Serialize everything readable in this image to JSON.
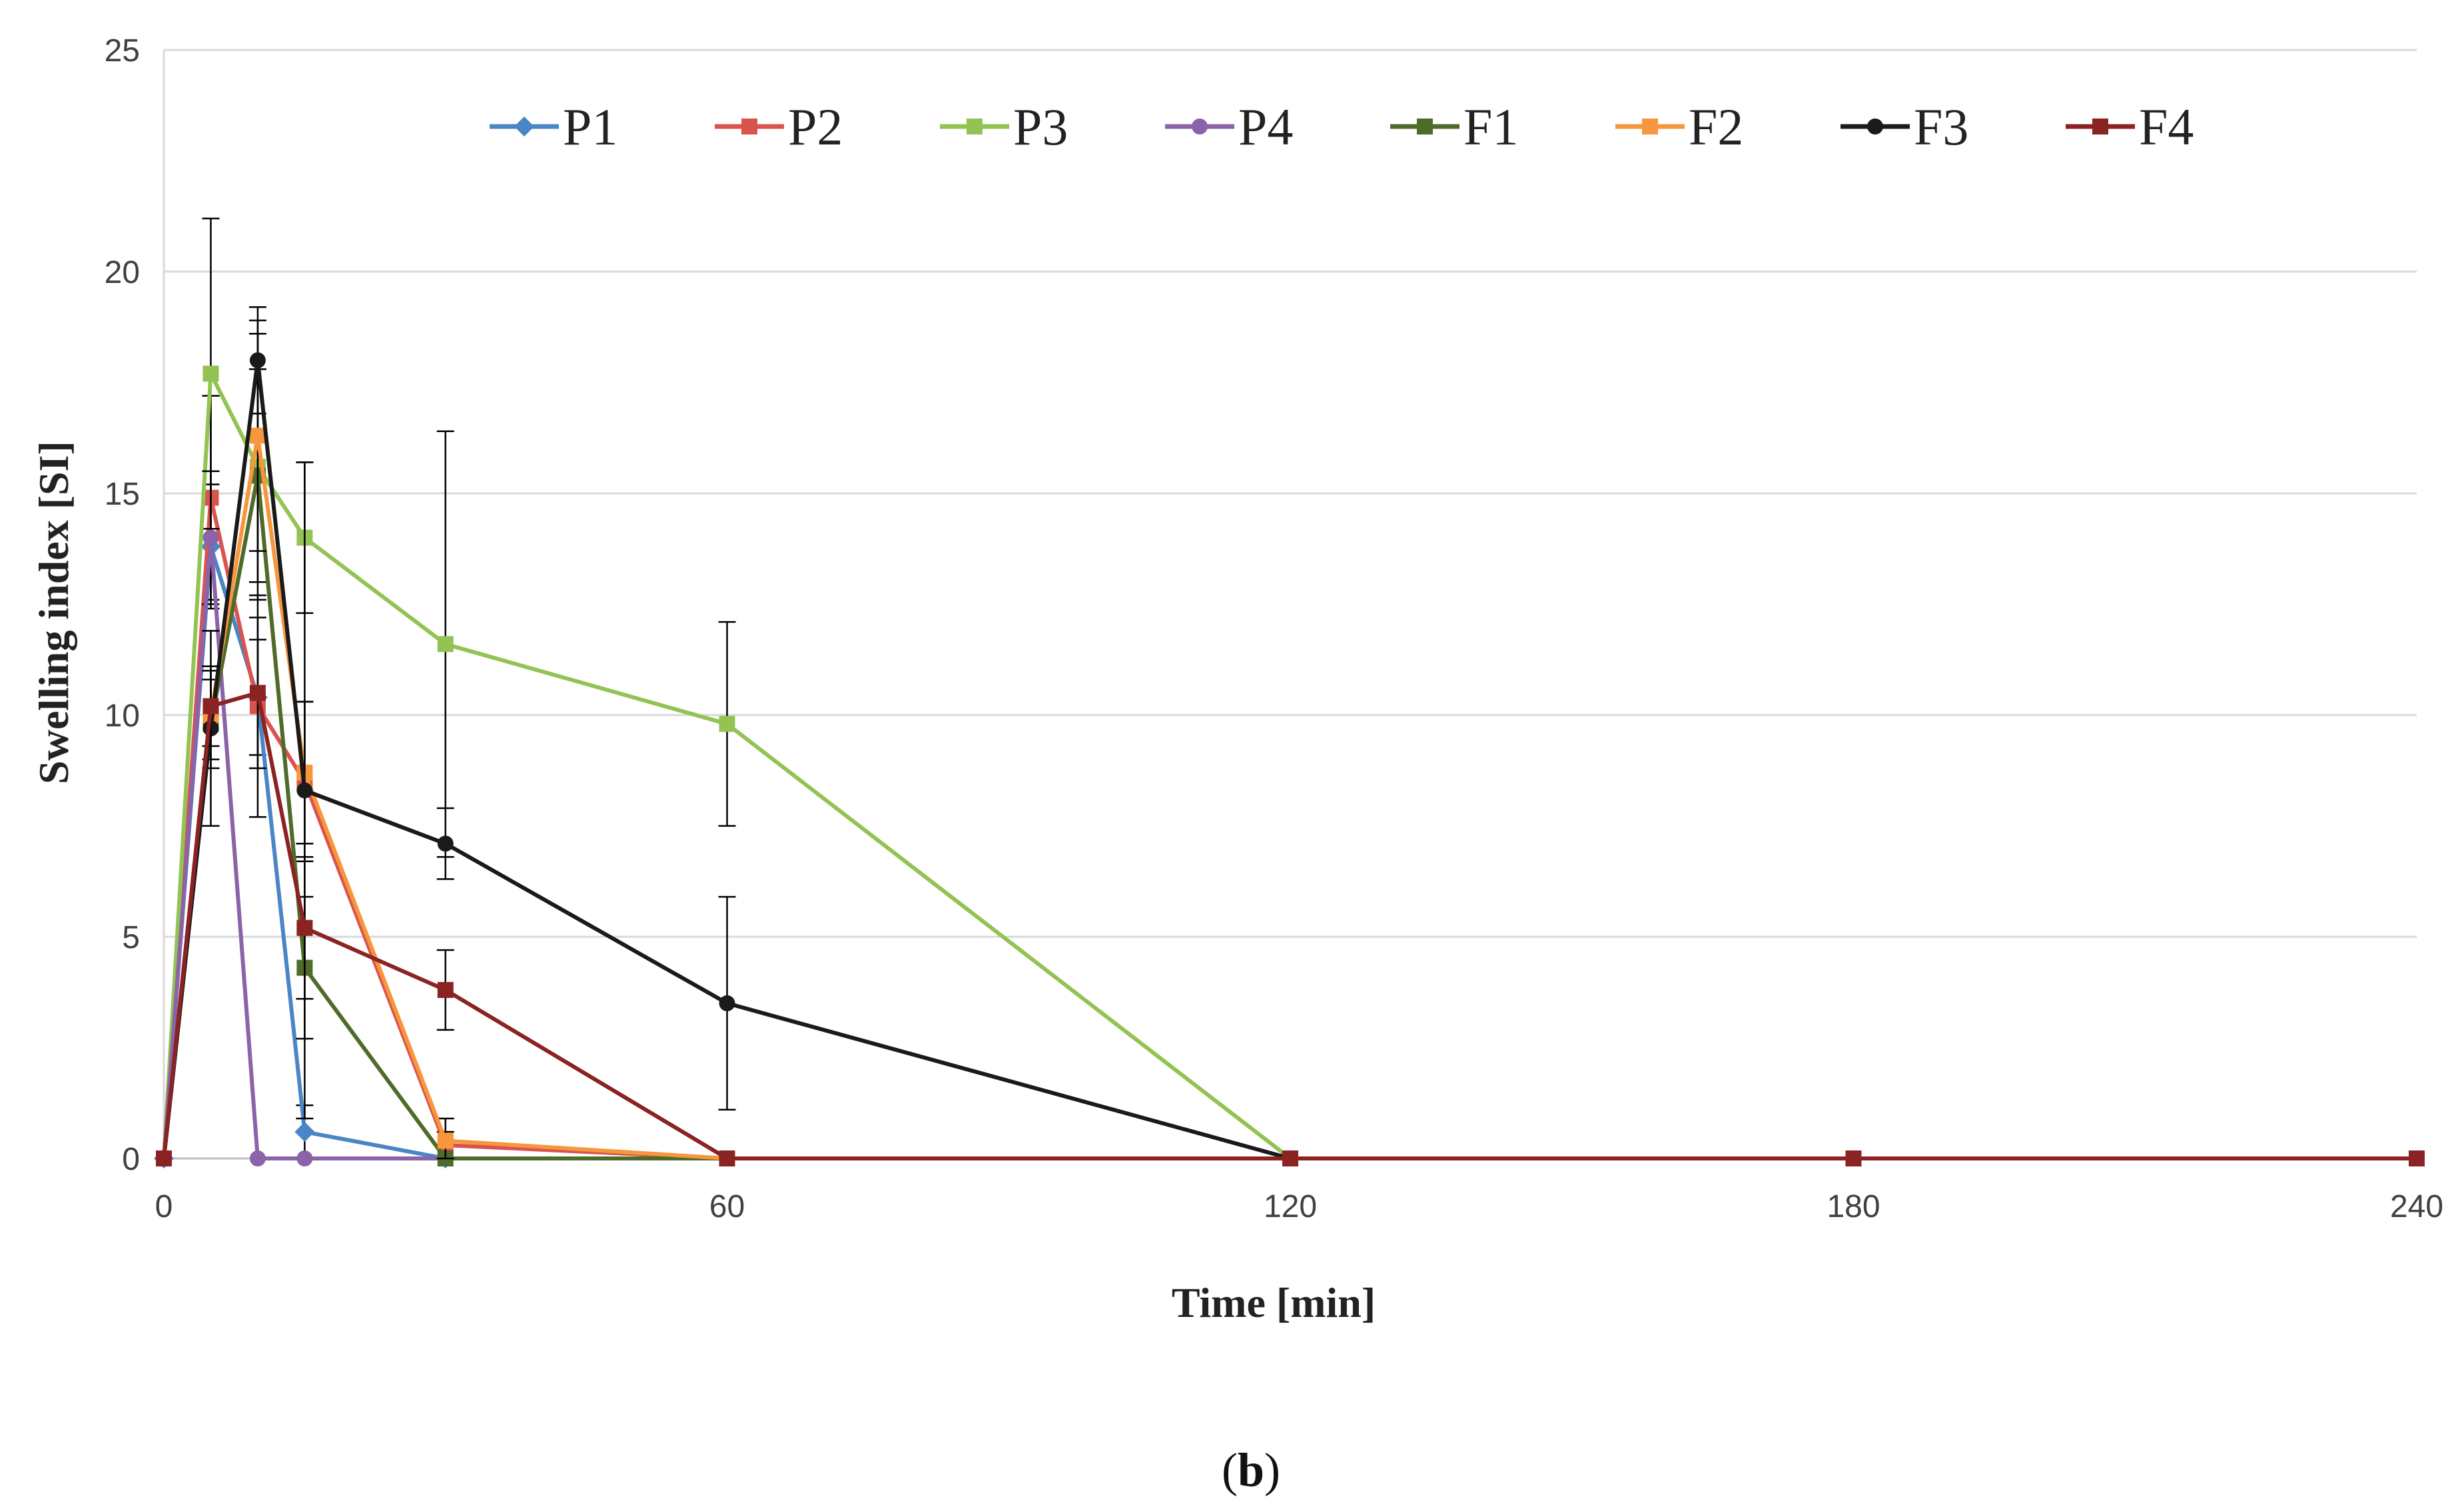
{
  "chart_data": {
    "type": "line",
    "xlabel": "Time [min]",
    "ylabel": "Swelling index [SI]",
    "xlim": [
      0,
      240
    ],
    "ylim": [
      0,
      25
    ],
    "xticks": [
      0,
      60,
      120,
      180,
      240
    ],
    "yticks": [
      0,
      5,
      10,
      15,
      20,
      25
    ],
    "grid": "horizontal",
    "legend_position": "top",
    "panel_label": "(b)",
    "panel_letter": "b",
    "series": [
      {
        "name": "P1",
        "color": "#4a86c6",
        "marker": "diamond",
        "x": [
          0,
          5,
          10,
          15,
          30
        ],
        "y": [
          0,
          13.8,
          10.4,
          0.6,
          0
        ],
        "err": [
          0,
          1.4,
          1.3,
          0.6,
          0
        ]
      },
      {
        "name": "P2",
        "color": "#d9534f",
        "marker": "square",
        "x": [
          0,
          5,
          10,
          15,
          30,
          60
        ],
        "y": [
          0,
          14.9,
          10.2,
          8.5,
          0.3,
          0
        ],
        "err": [
          0,
          2.3,
          2.5,
          1.8,
          0.3,
          0
        ]
      },
      {
        "name": "P3",
        "color": "#92c353",
        "marker": "square",
        "x": [
          0,
          5,
          10,
          15,
          30,
          60,
          120
        ],
        "y": [
          0,
          17.7,
          15.6,
          14.0,
          11.6,
          9.8,
          0
        ],
        "err": [
          0,
          3.5,
          3.0,
          1.7,
          4.8,
          2.3,
          0
        ]
      },
      {
        "name": "P4",
        "color": "#8b63a8",
        "marker": "circle",
        "x": [
          0,
          5,
          10,
          15,
          30
        ],
        "y": [
          0,
          14.0,
          0,
          0,
          0
        ],
        "err": [
          0,
          1.5,
          0,
          0,
          0
        ]
      },
      {
        "name": "F1",
        "color": "#4f6b2a",
        "marker": "square",
        "x": [
          0,
          5,
          10,
          15,
          30,
          60
        ],
        "y": [
          0,
          9.8,
          15.4,
          4.3,
          0,
          0
        ],
        "err": [
          0,
          1.0,
          2.4,
          1.6,
          0,
          0
        ]
      },
      {
        "name": "F2",
        "color": "#f7963c",
        "marker": "square",
        "x": [
          0,
          5,
          10,
          15,
          30,
          60
        ],
        "y": [
          0,
          10.0,
          16.3,
          8.7,
          0.4,
          0
        ],
        "err": [
          0,
          1.0,
          2.6,
          1.6,
          0.5,
          0
        ]
      },
      {
        "name": "F3",
        "color": "#1a1a1a",
        "marker": "circle",
        "x": [
          0,
          5,
          10,
          15,
          30,
          60,
          120
        ],
        "y": [
          0,
          9.7,
          18.0,
          8.3,
          7.1,
          3.5,
          0
        ],
        "err": [
          0,
          2.2,
          1.2,
          7.4,
          0.8,
          2.4,
          0
        ]
      },
      {
        "name": "F4",
        "color": "#8b2323",
        "marker": "square",
        "x": [
          0,
          5,
          10,
          15,
          30,
          60,
          120,
          180,
          240
        ],
        "y": [
          0,
          10.2,
          10.5,
          5.2,
          3.8,
          0,
          0,
          0,
          0
        ],
        "err": [
          0,
          0.9,
          1.7,
          1.6,
          0.9,
          0,
          0,
          0,
          0
        ]
      }
    ]
  }
}
